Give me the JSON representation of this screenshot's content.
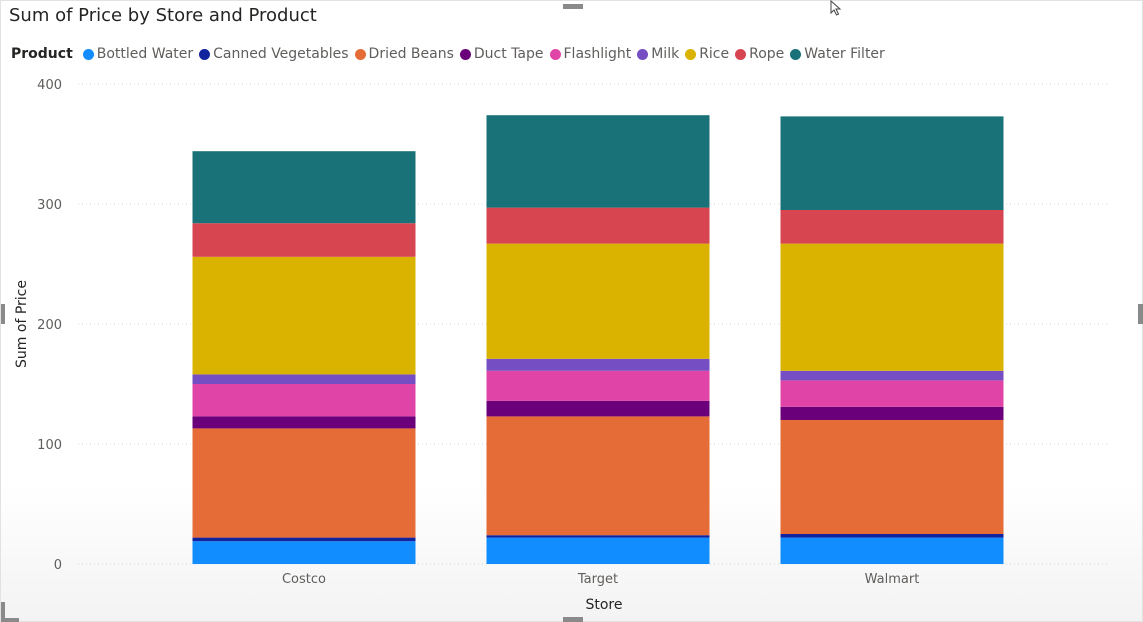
{
  "chart_data": {
    "type": "bar",
    "stacked": true,
    "title": "Sum of Price by Store and Product",
    "legend_title": "Product",
    "legend_position": "top-left",
    "xlabel": "Store",
    "ylabel": "Sum of Price",
    "ylim": [
      0,
      400
    ],
    "yticks": [
      0,
      100,
      200,
      300,
      400
    ],
    "grid": true,
    "categories": [
      "Costco",
      "Target",
      "Walmart"
    ],
    "series": [
      {
        "name": "Bottled Water",
        "color": "#118DFF",
        "values": [
          19,
          22,
          22
        ]
      },
      {
        "name": "Canned Vegetables",
        "color": "#12239E",
        "values": [
          3,
          2,
          3
        ]
      },
      {
        "name": "Dried Beans",
        "color": "#E66C37",
        "values": [
          91,
          99,
          95
        ]
      },
      {
        "name": "Duct Tape",
        "color": "#6B007B",
        "values": [
          10,
          13,
          11
        ]
      },
      {
        "name": "Flashlight",
        "color": "#E044A7",
        "values": [
          27,
          25,
          22
        ]
      },
      {
        "name": "Milk",
        "color": "#744EC2",
        "values": [
          8,
          10,
          8
        ]
      },
      {
        "name": "Rice",
        "color": "#D9B300",
        "values": [
          98,
          96,
          106
        ]
      },
      {
        "name": "Rope",
        "color": "#D64550",
        "values": [
          28,
          30,
          28
        ]
      },
      {
        "name": "Water Filter",
        "color": "#197278",
        "values": [
          60,
          77,
          78
        ]
      }
    ]
  }
}
